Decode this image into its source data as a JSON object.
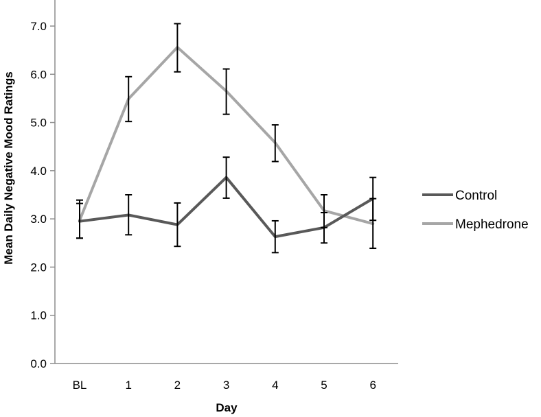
{
  "chart_data": {
    "type": "line",
    "title": "",
    "xlabel": "Day",
    "ylabel": "Mean Daily Negative Mood Ratings",
    "categories": [
      "BL",
      "1",
      "2",
      "3",
      "4",
      "5",
      "6"
    ],
    "ylim": [
      0,
      7
    ],
    "y_ticks": [
      "0.0",
      "1.0",
      "2.0",
      "3.0",
      "4.0",
      "5.0",
      "6.0",
      "7.0"
    ],
    "grid": false,
    "legend_position": "right",
    "series": [
      {
        "name": "Control",
        "color": "#595959",
        "values": [
          2.95,
          3.08,
          2.88,
          3.86,
          2.63,
          2.82,
          3.42
        ],
        "error_low": [
          2.6,
          2.67,
          2.43,
          3.43,
          2.3,
          2.5,
          2.97
        ],
        "error_high": [
          3.32,
          3.5,
          3.33,
          4.28,
          2.96,
          3.13,
          3.86
        ]
      },
      {
        "name": "Mephedrone",
        "color": "#a6a6a6",
        "values": [
          2.97,
          5.49,
          6.56,
          5.65,
          4.58,
          3.17,
          2.9
        ],
        "error_low": [
          2.6,
          5.02,
          6.05,
          5.17,
          4.19,
          2.82,
          2.39
        ],
        "error_high": [
          3.39,
          5.95,
          7.05,
          6.11,
          4.95,
          3.5,
          3.42
        ]
      }
    ]
  }
}
